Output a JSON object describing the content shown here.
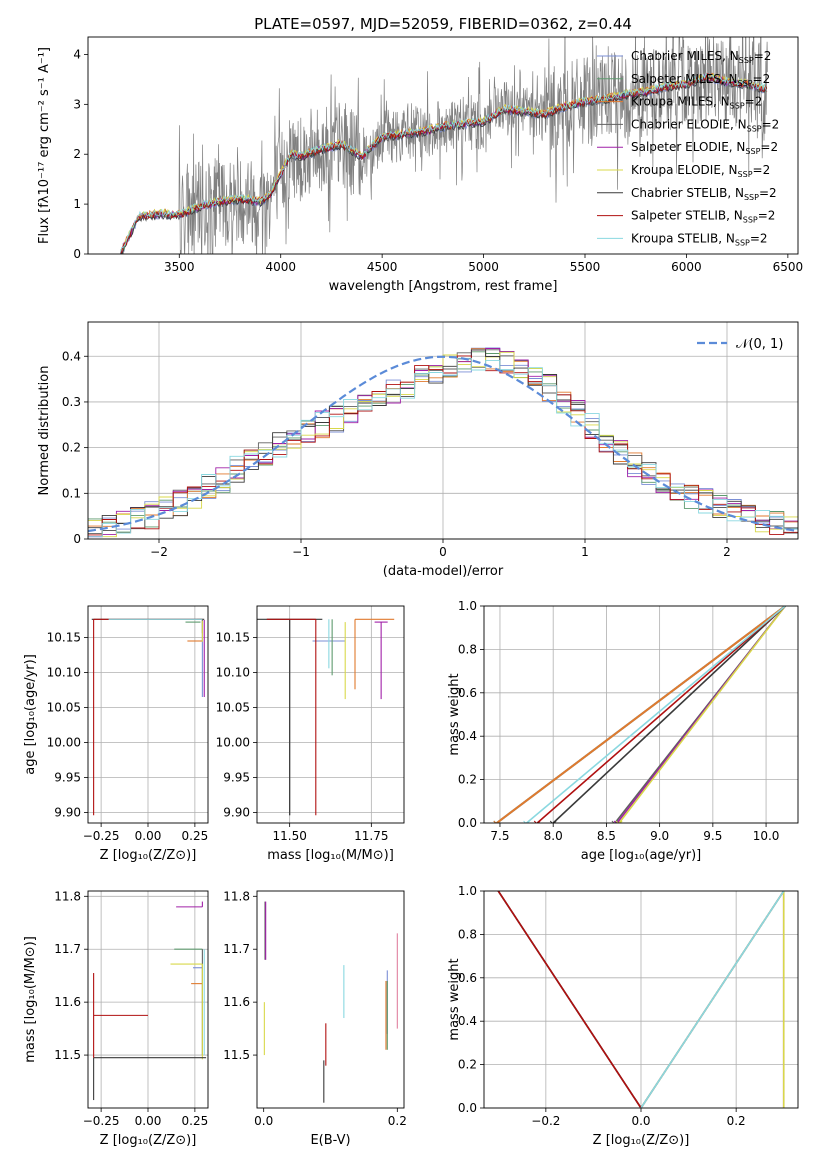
{
  "title": "PLATE=0597, MJD=52059, FIBERID=0362, z=0.44",
  "legend_suffix": "=2",
  "models": [
    {
      "name": "Chabrier MILES",
      "color": "#7b8fd6"
    },
    {
      "name": "Salpeter MILES",
      "color": "#5e9a6e"
    },
    {
      "name": "Kroupa MILES",
      "color": "#e07a2f"
    },
    {
      "name": "Chabrier ELODIE",
      "color": "#606060"
    },
    {
      "name": "Salpeter ELODIE",
      "color": "#a020a8"
    },
    {
      "name": "Kroupa ELODIE",
      "color": "#d8d84a"
    },
    {
      "name": "Chabrier STELIB",
      "color": "#3a3a3a"
    },
    {
      "name": "Salpeter STELIB",
      "color": "#b01010"
    },
    {
      "name": "Kroupa STELIB",
      "color": "#8ad8e0"
    }
  ],
  "chart_data": [
    {
      "id": "spectrum",
      "type": "line",
      "xlabel": "wavelength [Angstrom, rest frame]",
      "ylabel": "Flux [fλ10⁻¹⁷ erg cm⁻² s⁻¹ A⁻¹]",
      "xlim": [
        3050,
        6550
      ],
      "ylim": [
        0,
        4.35
      ],
      "xticks": [
        3500,
        4000,
        4500,
        5000,
        5500,
        6000,
        6500
      ],
      "yticks": [
        0,
        1,
        2,
        3,
        4
      ],
      "data_color": "#808080",
      "model_points": {
        "x": [
          3210,
          3300,
          3400,
          3500,
          3600,
          3700,
          3800,
          3900,
          3950,
          4000,
          4050,
          4100,
          4200,
          4300,
          4400,
          4500,
          4600,
          4700,
          4800,
          4900,
          5000,
          5100,
          5200,
          5300,
          5400,
          5500,
          5600,
          5700,
          5800,
          5900,
          6000,
          6100,
          6200,
          6300,
          6400
        ],
        "y": [
          0,
          0.75,
          0.8,
          0.78,
          0.95,
          1.05,
          1.1,
          1.05,
          1.2,
          1.6,
          2.0,
          1.95,
          2.1,
          2.2,
          1.95,
          2.35,
          2.4,
          2.45,
          2.55,
          2.6,
          2.65,
          2.9,
          2.85,
          2.8,
          2.95,
          3.05,
          3.1,
          3.2,
          3.25,
          3.35,
          3.4,
          3.55,
          3.45,
          3.4,
          3.3
        ]
      },
      "grid": false,
      "legend": "top-right"
    },
    {
      "id": "residuals",
      "type": "step",
      "xlabel": "(data-model)/error",
      "ylabel": "Normed distribution",
      "xlim": [
        -2.5,
        2.5
      ],
      "ylim": [
        0,
        0.475
      ],
      "xticks": [
        -2,
        -1,
        0,
        1,
        2
      ],
      "yticks": [
        0,
        0.1,
        0.2,
        0.3,
        0.4
      ],
      "normal_label": "𝒩(0, 1)",
      "normal_color": "#5b8bd8",
      "bin_edges_start": -2.5,
      "bin_width": 0.1,
      "grid": true,
      "legend": "top-right"
    },
    {
      "id": "z_age",
      "type": "errorbar",
      "xlabel": "Z [log₁₀(Z/Z⊙)]",
      "ylabel": "age  [log₁₀(age/yr)]",
      "xlim": [
        -0.32,
        0.32
      ],
      "ylim": [
        9.885,
        10.195
      ],
      "xticks": [
        -0.25,
        0,
        0.25
      ],
      "xticklabels": [
        "−0.25",
        "0.00",
        "0.25"
      ],
      "yticks": [
        9.9,
        9.95,
        10,
        10.05,
        10.1,
        10.15
      ],
      "yticklabels": [
        "9.90",
        "9.95",
        "10.00",
        "10.05",
        "10.10",
        "10.15"
      ],
      "grid": true
    },
    {
      "id": "mass_age",
      "type": "errorbar",
      "xlabel": "mass [log₁₀(M/M⊙)]",
      "ylabel": "",
      "xlim": [
        11.4,
        11.85
      ],
      "ylim": [
        9.885,
        10.195
      ],
      "xticks": [
        11.5,
        11.75
      ],
      "xticklabels": [
        "11.50",
        "11.75"
      ],
      "yticks": [
        9.9,
        9.95,
        10,
        10.05,
        10.1,
        10.15
      ],
      "yticklabels": [
        "9.90",
        "9.95",
        "10.00",
        "10.05",
        "10.10",
        "10.15"
      ],
      "grid": true
    },
    {
      "id": "age_cum",
      "type": "line",
      "xlabel": "age  [log₁₀(age/yr)]",
      "ylabel": "mass weight",
      "xlim": [
        7.35,
        10.3
      ],
      "ylim": [
        0,
        1
      ],
      "xticks": [
        7.5,
        8,
        8.5,
        9,
        9.5,
        10
      ],
      "xticklabels": [
        "7.5",
        "8.0",
        "8.5",
        "9.0",
        "9.5",
        "10.0"
      ],
      "yticks": [
        0,
        0.2,
        0.4,
        0.6,
        0.8,
        1
      ],
      "yticklabels": [
        "0.0",
        "0.2",
        "0.4",
        "0.6",
        "0.8",
        "1.0"
      ],
      "start_age": [
        7.47,
        7.47,
        7.47,
        8.58,
        8.6,
        8.62,
        8.0,
        7.85,
        7.75
      ],
      "end_age": 10.18,
      "grid": true
    },
    {
      "id": "z_mass",
      "type": "errorbar",
      "xlabel": "Z [log₁₀(Z/Z⊙)]",
      "ylabel": "mass [log₁₀(M/M⊙)]",
      "xlim": [
        -0.32,
        0.32
      ],
      "ylim": [
        11.4,
        11.81
      ],
      "xticks": [
        -0.25,
        0,
        0.25
      ],
      "xticklabels": [
        "−0.25",
        "0.00",
        "0.25"
      ],
      "yticks": [
        11.5,
        11.6,
        11.7,
        11.8
      ],
      "yticklabels": [
        "11.5",
        "11.6",
        "11.7",
        "11.8"
      ],
      "grid": true
    },
    {
      "id": "ebv_mass",
      "type": "errorbar",
      "xlabel": "E(B-V)",
      "ylabel": "",
      "xlim": [
        -0.01,
        0.21
      ],
      "ylim": [
        11.4,
        11.81
      ],
      "xticks": [
        0,
        0.2
      ],
      "xticklabels": [
        "0.0",
        "0.2"
      ],
      "yticks": [
        11.5,
        11.6,
        11.7,
        11.8
      ],
      "yticklabels": [
        "11.5",
        "11.6",
        "11.7",
        "11.8"
      ],
      "grid": false
    },
    {
      "id": "z_cum",
      "type": "line",
      "xlabel": "Z [log₁₀(Z/Z⊙)]",
      "ylabel": "mass weight",
      "xlim": [
        -0.33,
        0.33
      ],
      "ylim": [
        0,
        1
      ],
      "xticks": [
        -0.2,
        0,
        0.2
      ],
      "xticklabels": [
        "−0.2",
        "0.0",
        "0.2"
      ],
      "yticks": [
        0,
        0.2,
        0.4,
        0.6,
        0.8,
        1
      ],
      "yticklabels": [
        "0.0",
        "0.2",
        "0.4",
        "0.6",
        "0.8",
        "1.0"
      ],
      "grid": true
    }
  ]
}
